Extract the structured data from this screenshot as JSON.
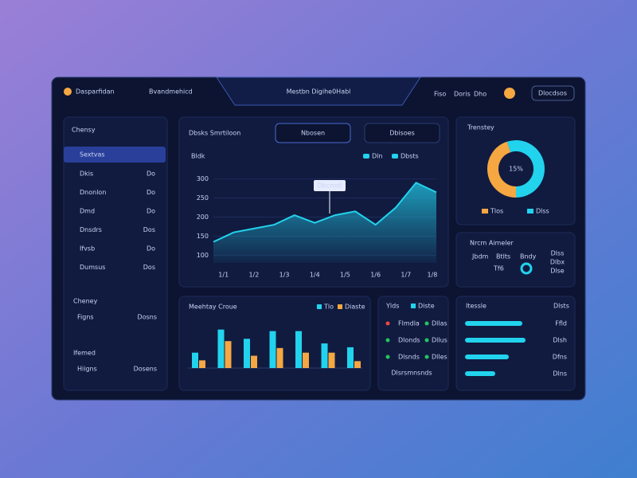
{
  "header": {
    "brand": "Dasparfidan",
    "nav": "Bvandmehicd",
    "title": "Mestbn Digihe0Habl",
    "links": [
      "Fiso",
      "Doris",
      "Dho"
    ],
    "button": "Dlocdsos"
  },
  "sidebar": {
    "heading": "Chensy",
    "selected": "Sextvas",
    "items": [
      {
        "label": "Dkis",
        "value": "Do"
      },
      {
        "label": "Dnonlon",
        "value": "Do"
      },
      {
        "label": "Dmd",
        "value": "Do"
      },
      {
        "label": "Dnsdrs",
        "value": "Dos"
      },
      {
        "label": "Ifvsb",
        "value": "Do"
      },
      {
        "label": "Dumsus",
        "value": "Dos"
      }
    ],
    "sections": [
      {
        "heading": "Cheney",
        "label": "Figns",
        "value": "Dosns"
      },
      {
        "heading": "Ifemed",
        "label": "Hiigns",
        "value": "Dosens"
      }
    ]
  },
  "main_chart": {
    "type": "line",
    "title": "Dbsks Smrtiloon",
    "buttons": [
      "Nbosen",
      "Dbisoes"
    ],
    "badge": "Bldk",
    "legend": [
      "Dln",
      "Dbsts"
    ],
    "tooltip": "Dbcmdl",
    "x": [
      0,
      1,
      2,
      3,
      4,
      5,
      6,
      7,
      8,
      9,
      10,
      11
    ],
    "values": [
      135,
      160,
      170,
      180,
      205,
      185,
      205,
      215,
      180,
      225,
      290,
      265
    ],
    "xlim": [
      0,
      11
    ],
    "xticks": [
      {
        "value": 0.5,
        "label": "1/1"
      },
      {
        "value": 2,
        "label": "1/2"
      },
      {
        "value": 3.5,
        "label": "1/3"
      },
      {
        "value": 5,
        "label": "1/4"
      },
      {
        "value": 6.5,
        "label": "1/5"
      },
      {
        "value": 8,
        "label": "1/6"
      },
      {
        "value": 9.5,
        "label": "1/7"
      },
      {
        "value": 10.8,
        "label": "1/8"
      }
    ],
    "ylim": [
      80,
      320
    ],
    "yticks": [
      300,
      250,
      200,
      150,
      100
    ],
    "color": "#22d3ee"
  },
  "donut": {
    "type": "pie",
    "title": "Trenstey",
    "center_label": "15%",
    "labels": [
      "Tlos",
      "Dlss"
    ],
    "values": [
      45,
      55
    ],
    "colors": [
      "#f5a742",
      "#22d3ee"
    ]
  },
  "stats": {
    "title": "Nrcm Aimeler",
    "items": [
      "Jbdm",
      "Btlts",
      "Bndy"
    ],
    "value_label": "Tf6",
    "rows": [
      "Dlss",
      "Dlbx",
      "Dlse"
    ]
  },
  "bar_chart": {
    "type": "bar",
    "title": "Meehtay Croue",
    "ylim": [
      0,
      60
    ],
    "series": [
      {
        "name": "Tlo",
        "color": "#22d3ee",
        "values": [
          20,
          50,
          38,
          48,
          48,
          32,
          27
        ]
      },
      {
        "name": "Diaste",
        "color": "#f5a742",
        "values": [
          10,
          35,
          16,
          26,
          20,
          20,
          9
        ]
      }
    ]
  },
  "list": {
    "title": "Ylds",
    "legend": "Diste",
    "rows": [
      {
        "label": "Flmdla",
        "value": "Dllas",
        "color": "#ef4444"
      },
      {
        "label": "Dlonds",
        "value": "Dllus",
        "color": "#22c55e"
      },
      {
        "label": "Dlsnds",
        "value": "Dlles",
        "color": "#22c55e"
      }
    ],
    "footer": "Dlsrsmnsnds"
  },
  "progress": {
    "title": "Itessle",
    "legend": "Dlsts",
    "max": 100,
    "items": [
      {
        "value": 72,
        "label": "Ffld"
      },
      {
        "value": 76,
        "label": "Dlsh"
      },
      {
        "value": 55,
        "label": "Dfns"
      },
      {
        "value": 38,
        "label": "Dlns"
      }
    ]
  }
}
